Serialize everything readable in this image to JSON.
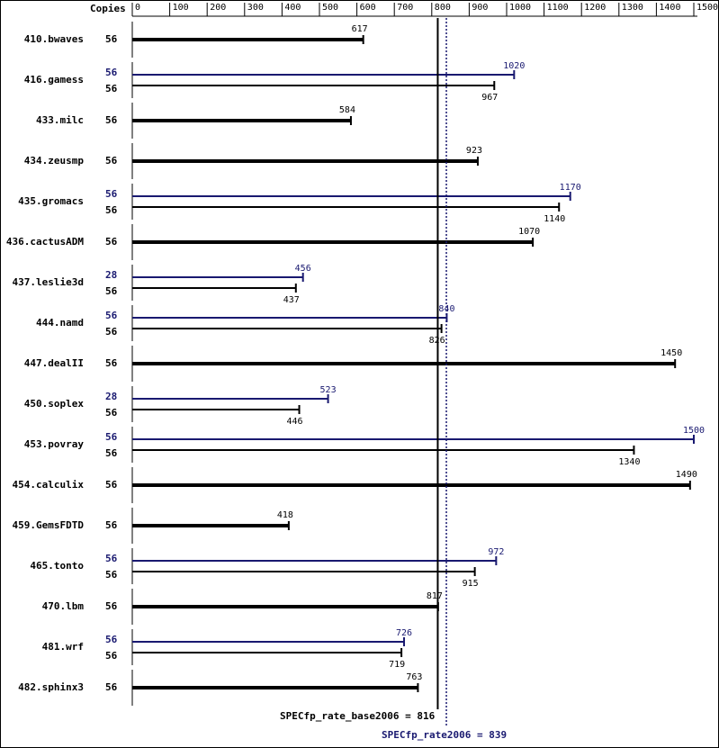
{
  "chart_data": {
    "type": "spec-bar",
    "copies_label": "Copies",
    "xlim": [
      0,
      1500
    ],
    "xticks": [
      0,
      100,
      200,
      300,
      400,
      500,
      600,
      700,
      800,
      900,
      1000,
      1100,
      1200,
      1300,
      1400,
      1500
    ],
    "base_color": "#000000",
    "peak_color": "#191970",
    "benchmarks": [
      {
        "name": "410.bwaves",
        "base_copies": 56,
        "base": 617
      },
      {
        "name": "416.gamess",
        "base_copies": 56,
        "base": 967,
        "peak_copies": 56,
        "peak": 1020
      },
      {
        "name": "433.milc",
        "base_copies": 56,
        "base": 584
      },
      {
        "name": "434.zeusmp",
        "base_copies": 56,
        "base": 923
      },
      {
        "name": "435.gromacs",
        "base_copies": 56,
        "base": 1140,
        "peak_copies": 56,
        "peak": 1170
      },
      {
        "name": "436.cactusADM",
        "base_copies": 56,
        "base": 1070
      },
      {
        "name": "437.leslie3d",
        "base_copies": 56,
        "base": 437,
        "peak_copies": 28,
        "peak": 456
      },
      {
        "name": "444.namd",
        "base_copies": 56,
        "base": 826,
        "peak_copies": 56,
        "peak": 840
      },
      {
        "name": "447.dealII",
        "base_copies": 56,
        "base": 1450
      },
      {
        "name": "450.soplex",
        "base_copies": 56,
        "base": 446,
        "peak_copies": 28,
        "peak": 523
      },
      {
        "name": "453.povray",
        "base_copies": 56,
        "base": 1340,
        "peak_copies": 56,
        "peak": 1500
      },
      {
        "name": "454.calculix",
        "base_copies": 56,
        "base": 1490
      },
      {
        "name": "459.GemsFDTD",
        "base_copies": 56,
        "base": 418
      },
      {
        "name": "465.tonto",
        "base_copies": 56,
        "base": 915,
        "peak_copies": 56,
        "peak": 972
      },
      {
        "name": "470.lbm",
        "base_copies": 56,
        "base": 817
      },
      {
        "name": "481.wrf",
        "base_copies": 56,
        "base": 719,
        "peak_copies": 56,
        "peak": 726
      },
      {
        "name": "482.sphinx3",
        "base_copies": 56,
        "base": 763
      }
    ],
    "base_ref": {
      "value": 816,
      "label": "SPECfp_rate_base2006 = 816"
    },
    "peak_ref": {
      "value": 839,
      "label": "SPECfp_rate2006 = 839"
    }
  }
}
